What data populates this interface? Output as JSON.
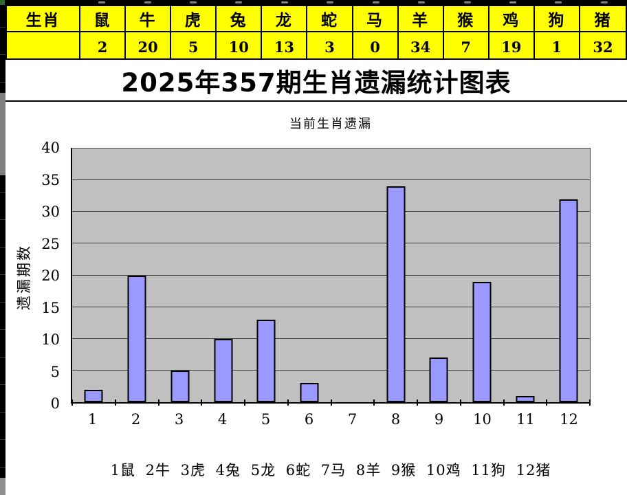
{
  "colors": {
    "cell_bg": "#FFFF00",
    "bar_fill": "#9999FF",
    "bar_border": "#000000",
    "plot_bg": "#C0C0C0"
  },
  "spreadsheet": {
    "zodiac_row_label": "生肖",
    "zodiac_columns": [
      "鼠",
      "牛",
      "虎",
      "兔",
      "龙",
      "蛇",
      "马",
      "羊",
      "猴",
      "鸡",
      "狗",
      "猪"
    ],
    "omission_values": [
      "2",
      "20",
      "5",
      "10",
      "13",
      "3",
      "0",
      "34",
      "7",
      "19",
      "1",
      "32"
    ]
  },
  "page_title": "2025年357期生肖遗漏统计图表",
  "chart_data": {
    "type": "bar",
    "title": "当前生肖遗漏",
    "ylabel": "遗漏期数",
    "xlabel": "",
    "categories": [
      "1",
      "2",
      "3",
      "4",
      "5",
      "6",
      "7",
      "8",
      "9",
      "10",
      "11",
      "12"
    ],
    "values": [
      2,
      20,
      5,
      10,
      13,
      3,
      0,
      34,
      7,
      19,
      1,
      32
    ],
    "ylim": [
      0,
      40
    ],
    "ytick_step": 5,
    "grid": true,
    "legend_position": "none",
    "footnote": "1鼠 2牛 3虎 4兔 5龙 6蛇 7马 8羊 9猴 10鸡 11狗 12猪"
  }
}
